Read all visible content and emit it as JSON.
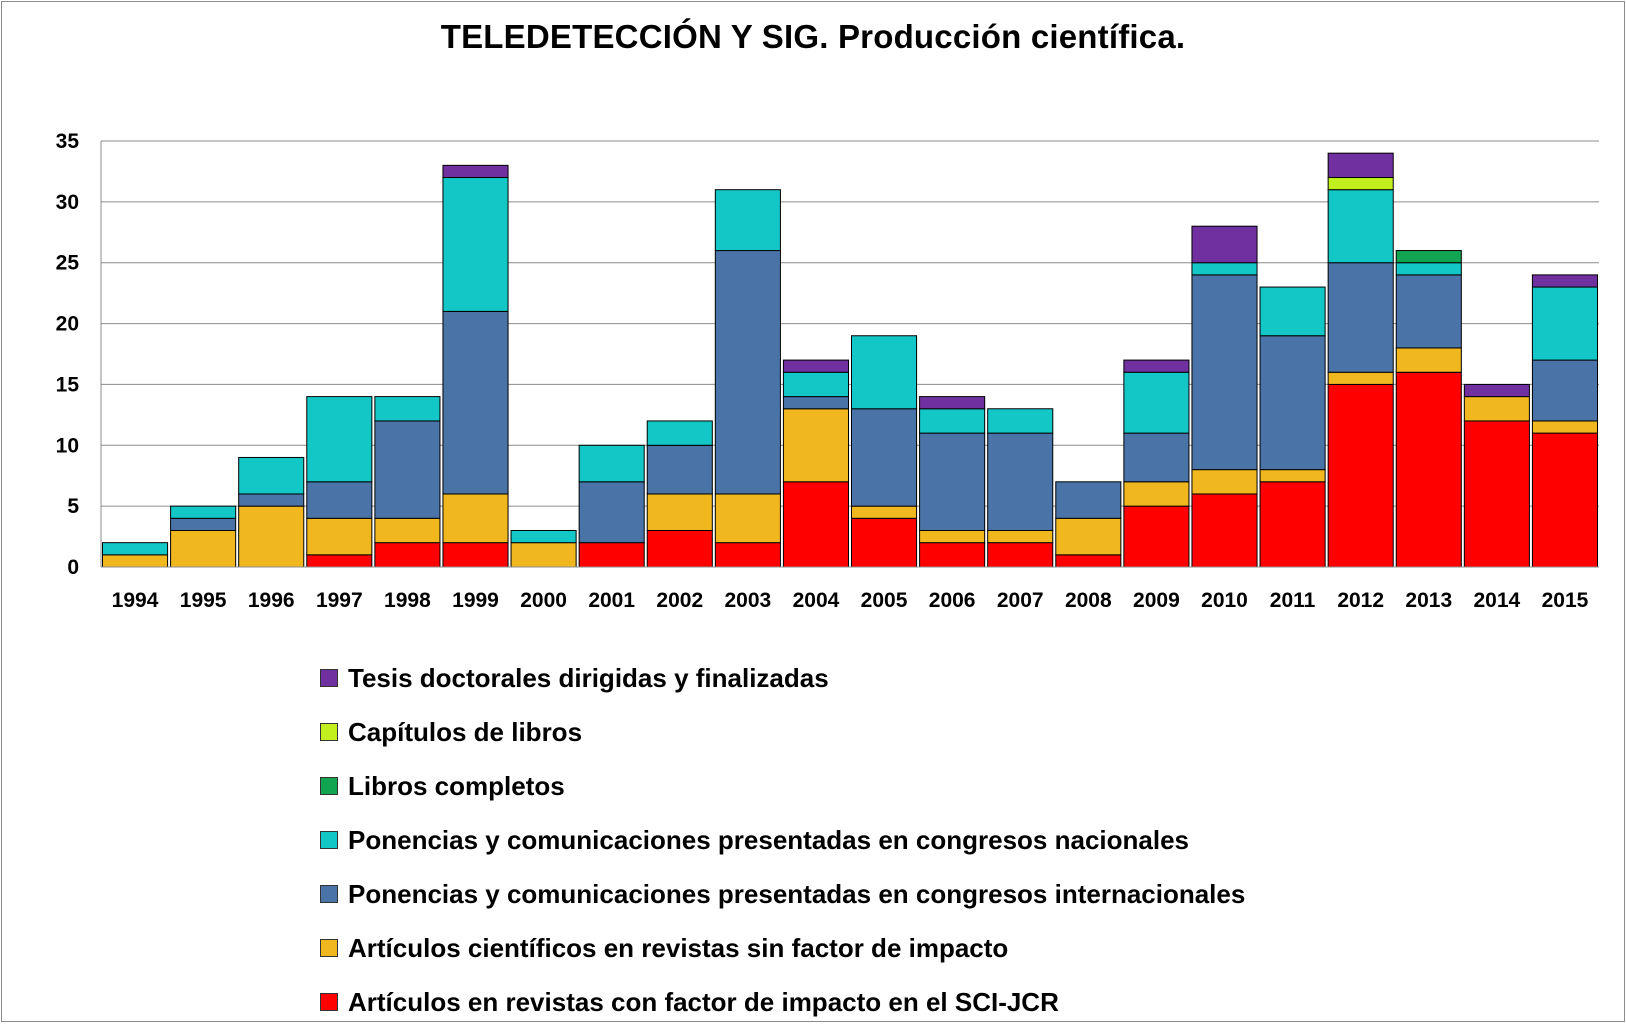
{
  "chart_data": {
    "type": "bar",
    "stacked": true,
    "title": "TELEDETECCIÓN Y SIG. Producción científica.",
    "xlabel": "",
    "ylabel": "",
    "ylim": [
      0,
      35
    ],
    "yticks": [
      0,
      5,
      10,
      15,
      20,
      25,
      30,
      35
    ],
    "grid": true,
    "legend_position": "bottom",
    "categories": [
      "1994",
      "1995",
      "1996",
      "1997",
      "1998",
      "1999",
      "2000",
      "2001",
      "2002",
      "2003",
      "2004",
      "2005",
      "2006",
      "2007",
      "2008",
      "2009",
      "2010",
      "2011",
      "2012",
      "2013",
      "2014",
      "2015"
    ],
    "series": [
      {
        "name": "Artículos en revistas con factor de impacto en el SCI-JCR",
        "color": "#FF0000",
        "values": [
          0,
          0,
          0,
          1,
          2,
          2,
          0,
          2,
          3,
          2,
          7,
          4,
          2,
          2,
          1,
          5,
          6,
          7,
          15,
          16,
          12,
          11
        ]
      },
      {
        "name": "Artículos científicos en revistas sin factor de impacto",
        "color": "#F0B81E",
        "values": [
          1,
          3,
          5,
          3,
          2,
          4,
          2,
          0,
          3,
          4,
          6,
          1,
          1,
          1,
          3,
          2,
          2,
          1,
          1,
          2,
          2,
          1
        ]
      },
      {
        "name": "Ponencias y comunicaciones presentadas en congresos internacionales",
        "color": "#4A74A8",
        "values": [
          0,
          1,
          1,
          3,
          8,
          15,
          0,
          5,
          4,
          20,
          1,
          8,
          8,
          8,
          3,
          4,
          16,
          11,
          9,
          6,
          0,
          5
        ]
      },
      {
        "name": "Ponencias y comunicaciones presentadas en congresos nacionales",
        "color": "#13C7C7",
        "values": [
          1,
          1,
          3,
          7,
          2,
          11,
          1,
          3,
          2,
          5,
          2,
          6,
          2,
          2,
          0,
          5,
          1,
          4,
          6,
          1,
          0,
          6
        ]
      },
      {
        "name": "Libros completos",
        "color": "#12A551",
        "values": [
          0,
          0,
          0,
          0,
          0,
          0,
          0,
          0,
          0,
          0,
          0,
          0,
          0,
          0,
          0,
          0,
          0,
          0,
          0,
          1,
          0,
          0
        ]
      },
      {
        "name": "Capítulos de libros",
        "color": "#C2F01E",
        "values": [
          0,
          0,
          0,
          0,
          0,
          0,
          0,
          0,
          0,
          0,
          0,
          0,
          0,
          0,
          0,
          0,
          0,
          0,
          1,
          0,
          0,
          0
        ]
      },
      {
        "name": "Tesis doctorales dirigidas y finalizadas",
        "color": "#7030A0",
        "values": [
          0,
          0,
          0,
          0,
          0,
          1,
          0,
          0,
          0,
          0,
          1,
          0,
          1,
          0,
          0,
          1,
          3,
          0,
          2,
          0,
          1,
          1
        ]
      }
    ]
  }
}
